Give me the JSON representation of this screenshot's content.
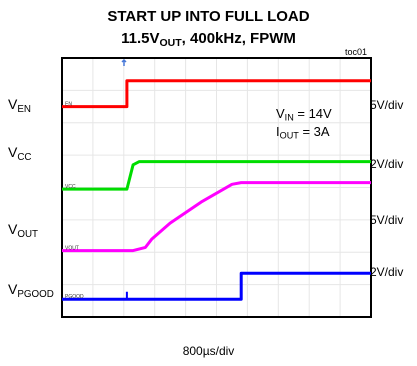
{
  "title": {
    "line1": "START UP INTO FULL LOAD",
    "line2_value": "11.5V",
    "line2_sub": "OUT",
    "line2_rest": ", 400kHz, FPWM"
  },
  "figure_ref": "toc01",
  "conditions": {
    "vin": {
      "main": "V",
      "sub": "IN",
      "rest": " = 14V"
    },
    "iout": {
      "main": "I",
      "sub": "OUT",
      "rest": " = 3A"
    }
  },
  "time_axis_label": "800µs/div",
  "colors": {
    "en": "#ff0000",
    "vcc": "#00dd00",
    "vout": "#ff00ff",
    "pgood": "#0000ff"
  },
  "chart_data": {
    "type": "line",
    "title": "START UP INTO FULL LOAD 11.5VOUT, 400kHz, FPWM",
    "xlabel": "800µs/div",
    "x_divisions": 10,
    "y_divisions": 8,
    "x_unit": "division",
    "y_unit": "division",
    "series": [
      {
        "name": "VEN",
        "marker": "EN",
        "label_main": "V",
        "label_sub": "EN",
        "scale": "5V/div",
        "x": [
          0,
          2.1,
          2.1,
          10
        ],
        "y": [
          6.5,
          6.5,
          7.3,
          7.3
        ]
      },
      {
        "name": "VCC",
        "marker": "VCC",
        "label_main": "V",
        "label_sub": "CC",
        "scale": "2V/div",
        "x": [
          0,
          2.1,
          2.3,
          2.5,
          10
        ],
        "y": [
          3.95,
          3.95,
          4.7,
          4.8,
          4.8
        ]
      },
      {
        "name": "VOUT",
        "marker": "VOUT",
        "label_main": "V",
        "label_sub": "OUT",
        "scale": "5V/div",
        "x": [
          0,
          2.3,
          2.7,
          2.9,
          3.5,
          4.5,
          5.5,
          5.8,
          10
        ],
        "y": [
          2.05,
          2.05,
          2.15,
          2.4,
          2.9,
          3.55,
          4.1,
          4.15,
          4.15
        ]
      },
      {
        "name": "VPGOOD",
        "marker": "PGOOD",
        "label_main": "V",
        "label_sub": "PGOOD",
        "scale": "2V/div",
        "x": [
          0,
          5.8,
          5.8,
          10
        ],
        "y": [
          0.55,
          0.55,
          1.35,
          1.35
        ]
      }
    ]
  }
}
